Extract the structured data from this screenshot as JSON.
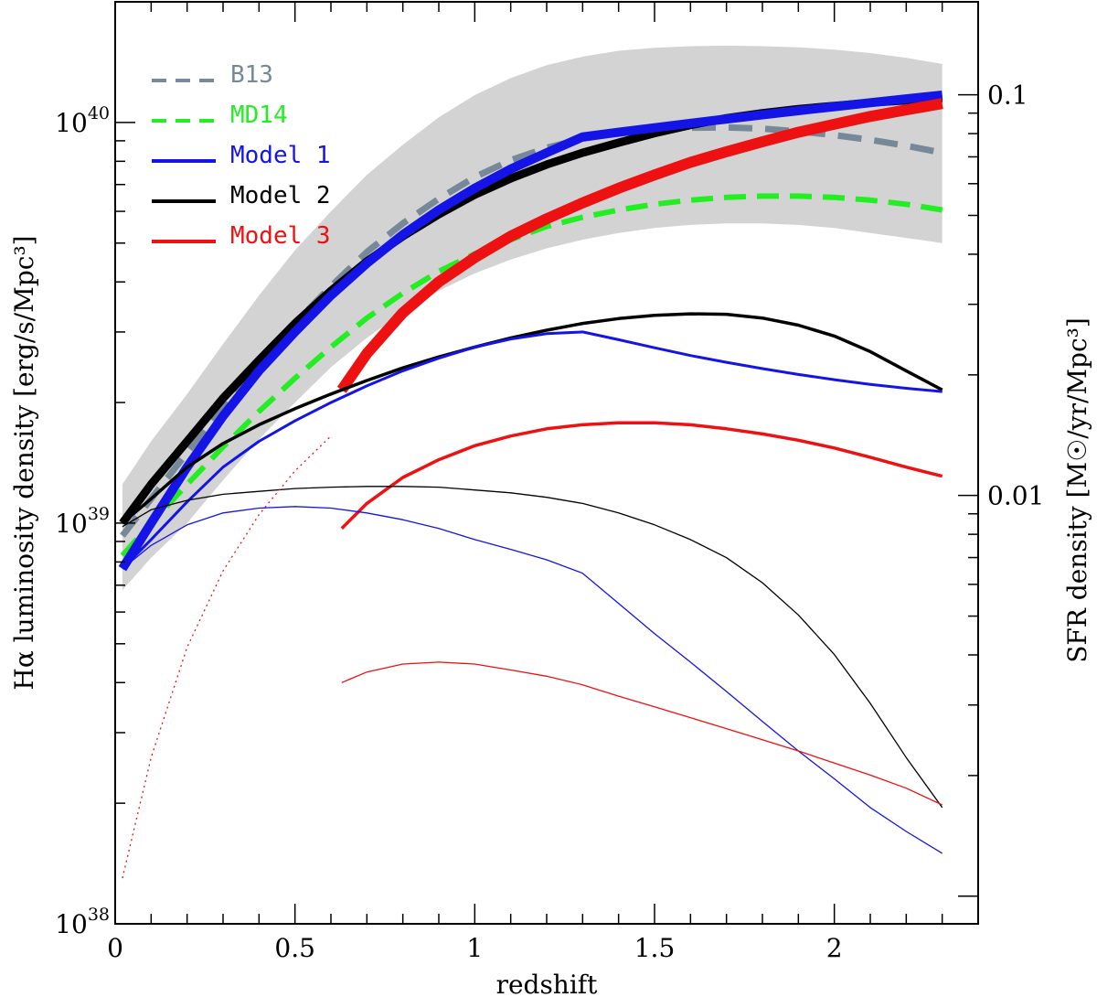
{
  "chart_data": {
    "type": "line",
    "x_axis": {
      "label": "redshift",
      "range": [
        0,
        2.4
      ],
      "major_ticks": [
        0,
        0.5,
        1,
        1.5,
        2
      ],
      "tick_labels": [
        "0",
        "0.5",
        "1",
        "1.5",
        "2"
      ]
    },
    "y_axis_left": {
      "label": "Hα luminosity density [erg/s/Mpc³]",
      "scale": "log",
      "range": [
        1e+38,
        2e+40
      ],
      "ticks": [
        {
          "value": 1e+38,
          "base": "10",
          "exp": "38"
        },
        {
          "value": 1e+39,
          "base": "10",
          "exp": "39"
        },
        {
          "value": 1e+40,
          "base": "10",
          "exp": "40"
        }
      ]
    },
    "y_axis_right": {
      "label": "SFR density [M☉/yr/Mpc³]",
      "scale": "log",
      "range_at_left_1e40": 0.0853,
      "ticks": [
        {
          "value": 0.01,
          "label": "0.01"
        },
        {
          "value": 0.1,
          "label": "0.1"
        }
      ]
    },
    "legend": {
      "position": "top-left",
      "entries": [
        {
          "label": "B13",
          "color": "#778899",
          "style": "dashed"
        },
        {
          "label": "MD14",
          "color": "#22ee22",
          "style": "dashed"
        },
        {
          "label": "Model 1",
          "color": "#1414e6",
          "style": "solid"
        },
        {
          "label": "Model 2",
          "color": "#000000",
          "style": "solid"
        },
        {
          "label": "Model 3",
          "color": "#ee1111",
          "style": "solid"
        }
      ]
    },
    "band": {
      "name": "uncertainty band",
      "color": "#d3d3d3",
      "x": [
        0.02,
        0.1,
        0.2,
        0.3,
        0.4,
        0.5,
        0.6,
        0.7,
        0.8,
        0.9,
        1.0,
        1.1,
        1.2,
        1.3,
        1.4,
        1.5,
        1.6,
        1.7,
        1.8,
        1.9,
        2.0,
        2.1,
        2.2,
        2.3
      ],
      "upper": [
        1.25e+39,
        1.6e+39,
        2.1e+39,
        2.8e+39,
        3.7e+39,
        4.8e+39,
        6e+39,
        7.4e+39,
        8.8e+39,
        1.03e+40,
        1.17e+40,
        1.29e+40,
        1.39e+40,
        1.46e+40,
        1.51e+40,
        1.535e+40,
        1.55e+40,
        1.555e+40,
        1.55e+40,
        1.54e+40,
        1.52e+40,
        1.49e+40,
        1.45e+40,
        1.4e+40
      ],
      "lower": [
        6.8e+38,
        8.2e+38,
        1e+39,
        1.28e+39,
        1.62e+39,
        2e+39,
        2.45e+39,
        2.9e+39,
        3.35e+39,
        3.8e+39,
        4.2e+39,
        4.55e+39,
        4.85e+39,
        5.1e+39,
        5.3e+39,
        5.45e+39,
        5.55e+39,
        5.6e+39,
        5.6e+39,
        5.55e+39,
        5.45e+39,
        5.3e+39,
        5.15e+39,
        5e+39
      ]
    },
    "series": [
      {
        "name": "B13",
        "color": "#778899",
        "width": 7,
        "dash": "26 14",
        "x": [
          0.02,
          0.1,
          0.2,
          0.3,
          0.4,
          0.5,
          0.6,
          0.7,
          0.8,
          0.9,
          1.0,
          1.1,
          1.2,
          1.3,
          1.4,
          1.5,
          1.6,
          1.7,
          1.8,
          1.9,
          2.0,
          2.1,
          2.2,
          2.3
        ],
        "y": [
          9.3e+38,
          1.15e+39,
          1.5e+39,
          1.95e+39,
          2.5e+39,
          3.15e+39,
          3.9e+39,
          4.75e+39,
          5.6e+39,
          6.45e+39,
          7.3e+39,
          8.05e+39,
          8.65e+39,
          9.1e+39,
          9.4e+39,
          9.6e+39,
          9.7e+39,
          9.72e+39,
          9.65e+39,
          9.5e+39,
          9.3e+39,
          9.05e+39,
          8.75e+39,
          8.4e+39
        ]
      },
      {
        "name": "MD14",
        "color": "#22ee22",
        "width": 6,
        "dash": "24 12",
        "x": [
          0.02,
          0.1,
          0.2,
          0.3,
          0.4,
          0.5,
          0.6,
          0.7,
          0.8,
          0.9,
          1.0,
          1.1,
          1.2,
          1.3,
          1.4,
          1.5,
          1.6,
          1.7,
          1.8,
          1.9,
          2.0,
          2.1,
          2.2,
          2.3
        ],
        "y": [
          8.3e+38,
          1e+39,
          1.25e+39,
          1.55e+39,
          1.9e+39,
          2.3e+39,
          2.75e+39,
          3.25e+39,
          3.75e+39,
          4.25e+39,
          4.7e+39,
          5.1e+39,
          5.5e+39,
          5.8e+39,
          6.05e+39,
          6.25e+39,
          6.4e+39,
          6.5e+39,
          6.55e+39,
          6.55e+39,
          6.5e+39,
          6.4e+39,
          6.25e+39,
          6.05e+39
        ]
      },
      {
        "name": "Model 2",
        "color": "#000000",
        "width": 9,
        "dash": "",
        "x": [
          0.02,
          0.1,
          0.2,
          0.3,
          0.4,
          0.5,
          0.6,
          0.7,
          0.8,
          0.9,
          1.0,
          1.1,
          1.2,
          1.3,
          1.4,
          1.5,
          1.6,
          1.7,
          1.8,
          1.9,
          2.0,
          2.1,
          2.2,
          2.3
        ],
        "y": [
          1e+39,
          1.25e+39,
          1.6e+39,
          2.05e+39,
          2.55e+39,
          3.15e+39,
          3.8e+39,
          4.5e+39,
          5.2e+39,
          5.9e+39,
          6.6e+39,
          7.25e+39,
          7.85e+39,
          8.4e+39,
          8.9e+39,
          9.4e+39,
          9.85e+39,
          1.025e+40,
          1.055e+40,
          1.08e+40,
          1.1e+40,
          1.12e+40,
          1.135e+40,
          1.15e+40
        ]
      },
      {
        "name": "Model 1",
        "color": "#1414e6",
        "width": 10,
        "dash": "",
        "x": [
          0.02,
          0.1,
          0.2,
          0.3,
          0.4,
          0.5,
          0.6,
          0.7,
          0.8,
          0.9,
          1.0,
          1.1,
          1.2,
          1.3,
          1.4,
          1.5,
          1.6,
          1.7,
          1.8,
          1.9,
          2.0,
          2.1,
          2.2,
          2.3
        ],
        "y": [
          7.7e+38,
          1e+39,
          1.38e+39,
          1.85e+39,
          2.4e+39,
          3e+39,
          3.7e+39,
          4.45e+39,
          5.25e+39,
          6.05e+39,
          6.85e+39,
          7.65e+39,
          8.4e+39,
          9.2e+39,
          9.45e+39,
          9.7e+39,
          9.95e+39,
          1.02e+40,
          1.045e+40,
          1.07e+40,
          1.095e+40,
          1.12e+40,
          1.145e+40,
          1.17e+40
        ]
      },
      {
        "name": "Model 3",
        "color": "#ee1111",
        "width": 12,
        "dash": "",
        "x": [
          0.63,
          0.7,
          0.8,
          0.9,
          1.0,
          1.1,
          1.2,
          1.3,
          1.4,
          1.5,
          1.6,
          1.7,
          1.8,
          1.9,
          2.0,
          2.1,
          2.2,
          2.3
        ],
        "y": [
          2.15e+39,
          2.65e+39,
          3.35e+39,
          4e+39,
          4.6e+39,
          5.2e+39,
          5.75e+39,
          6.3e+39,
          6.85e+39,
          7.4e+39,
          7.95e+39,
          8.45e+39,
          8.95e+39,
          9.45e+39,
          9.9e+39,
          1.035e+40,
          1.075e+40,
          1.115e+40
        ]
      },
      {
        "name": "Model 2 (medium)",
        "color": "#000000",
        "width": 3.5,
        "dash": "",
        "x": [
          0.02,
          0.1,
          0.2,
          0.3,
          0.4,
          0.5,
          0.6,
          0.7,
          0.8,
          0.9,
          1.0,
          1.1,
          1.2,
          1.3,
          1.4,
          1.5,
          1.6,
          1.7,
          1.8,
          1.9,
          2.0,
          2.1,
          2.2,
          2.3
        ],
        "y": [
          1e+39,
          1.15e+39,
          1.38e+39,
          1.58e+39,
          1.76e+39,
          1.93e+39,
          2.1e+39,
          2.27e+39,
          2.44e+39,
          2.6e+39,
          2.75e+39,
          2.9e+39,
          3.03e+39,
          3.15e+39,
          3.24e+39,
          3.3e+39,
          3.33e+39,
          3.32e+39,
          3.25e+39,
          3.12e+39,
          2.93e+39,
          2.68e+39,
          2.4e+39,
          2.15e+39
        ]
      },
      {
        "name": "Model 1 (medium)",
        "color": "#1414e6",
        "width": 3,
        "dash": "",
        "x": [
          0.02,
          0.1,
          0.2,
          0.3,
          0.4,
          0.5,
          0.6,
          0.7,
          0.8,
          0.9,
          1.0,
          1.1,
          1.2,
          1.3,
          1.4,
          1.5,
          1.6,
          1.7,
          1.8,
          1.9,
          2.0,
          2.1,
          2.2,
          2.3
        ],
        "y": [
          7.7e+38,
          9.1e+38,
          1.13e+39,
          1.38e+39,
          1.6e+39,
          1.8e+39,
          2e+39,
          2.2e+39,
          2.4e+39,
          2.58e+39,
          2.75e+39,
          2.88e+39,
          2.97e+39,
          3e+39,
          2.87e+39,
          2.74e+39,
          2.62e+39,
          2.52e+39,
          2.43e+39,
          2.35e+39,
          2.28e+39,
          2.22e+39,
          2.17e+39,
          2.13e+39
        ]
      },
      {
        "name": "Model 3 (medium)",
        "color": "#ee1111",
        "width": 3.5,
        "dash": "",
        "x": [
          0.63,
          0.7,
          0.8,
          0.9,
          1.0,
          1.1,
          1.2,
          1.3,
          1.4,
          1.5,
          1.6,
          1.7,
          1.8,
          1.9,
          2.0,
          2.1,
          2.2,
          2.3
        ],
        "y": [
          9.7e+38,
          1.12e+39,
          1.3e+39,
          1.44e+39,
          1.56e+39,
          1.65e+39,
          1.72e+39,
          1.76e+39,
          1.78e+39,
          1.78e+39,
          1.76e+39,
          1.72e+39,
          1.67e+39,
          1.61e+39,
          1.54e+39,
          1.46e+39,
          1.38e+39,
          1.31e+39
        ]
      },
      {
        "name": "Model 2 (thin)",
        "color": "#000000",
        "width": 1.3,
        "dash": "",
        "x": [
          0.02,
          0.1,
          0.2,
          0.3,
          0.4,
          0.5,
          0.6,
          0.7,
          0.8,
          0.9,
          1.0,
          1.1,
          1.2,
          1.3,
          1.4,
          1.5,
          1.6,
          1.7,
          1.8,
          1.9,
          2.0,
          2.1,
          2.2,
          2.3
        ],
        "y": [
          9.8e+38,
          1.08e+39,
          1.14e+39,
          1.18e+39,
          1.2e+39,
          1.22e+39,
          1.23e+39,
          1.235e+39,
          1.235e+39,
          1.23e+39,
          1.21e+39,
          1.19e+39,
          1.16e+39,
          1.12e+39,
          1.06e+39,
          9.9e+38,
          9.1e+38,
          8.2e+38,
          7.1e+38,
          5.9e+38,
          4.7e+38,
          3.55e+38,
          2.6e+38,
          1.95e+38
        ]
      },
      {
        "name": "Model 1 (thin)",
        "color": "#1414e6",
        "width": 1.3,
        "dash": "",
        "x": [
          0.02,
          0.1,
          0.2,
          0.3,
          0.4,
          0.5,
          0.6,
          0.7,
          0.8,
          0.9,
          1.0,
          1.1,
          1.2,
          1.3,
          1.4,
          1.5,
          1.6,
          1.7,
          1.8,
          1.9,
          2.0,
          2.1,
          2.2,
          2.3
        ],
        "y": [
          7.7e+38,
          8.8e+38,
          9.9e+38,
          1.06e+39,
          1.09e+39,
          1.1e+39,
          1.09e+39,
          1.06e+39,
          1.02e+39,
          9.7e+38,
          9.1e+38,
          8.6e+38,
          8.1e+38,
          7.5e+38,
          6.3e+38,
          5.3e+38,
          4.5e+38,
          3.8e+38,
          3.2e+38,
          2.7e+38,
          2.3e+38,
          1.95e+38,
          1.7e+38,
          1.5e+38
        ]
      },
      {
        "name": "Model 3 (thin)",
        "color": "#ee1111",
        "width": 1.3,
        "dash": "",
        "x": [
          0.63,
          0.7,
          0.8,
          0.9,
          1.0,
          1.1,
          1.2,
          1.3,
          1.4,
          1.5,
          1.6,
          1.7,
          1.8,
          1.9,
          2.0,
          2.1,
          2.2,
          2.3
        ],
        "y": [
          4e+38,
          4.25e+38,
          4.45e+38,
          4.5e+38,
          4.45e+38,
          4.3e+38,
          4.15e+38,
          3.95e+38,
          3.7e+38,
          3.48e+38,
          3.27e+38,
          3.07e+38,
          2.88e+38,
          2.7e+38,
          2.52e+38,
          2.35e+38,
          2.18e+38,
          1.98e+38
        ]
      },
      {
        "name": "Model 3 (dotted)",
        "color": "#ee1111",
        "width": 1.3,
        "dash": "2 4",
        "x": [
          0.02,
          0.1,
          0.2,
          0.3,
          0.4,
          0.5,
          0.6
        ],
        "y": [
          1.3e+38,
          2.6e+38,
          4.9e+38,
          7.6e+38,
          1.05e+39,
          1.35e+39,
          1.65e+39
        ]
      }
    ]
  }
}
